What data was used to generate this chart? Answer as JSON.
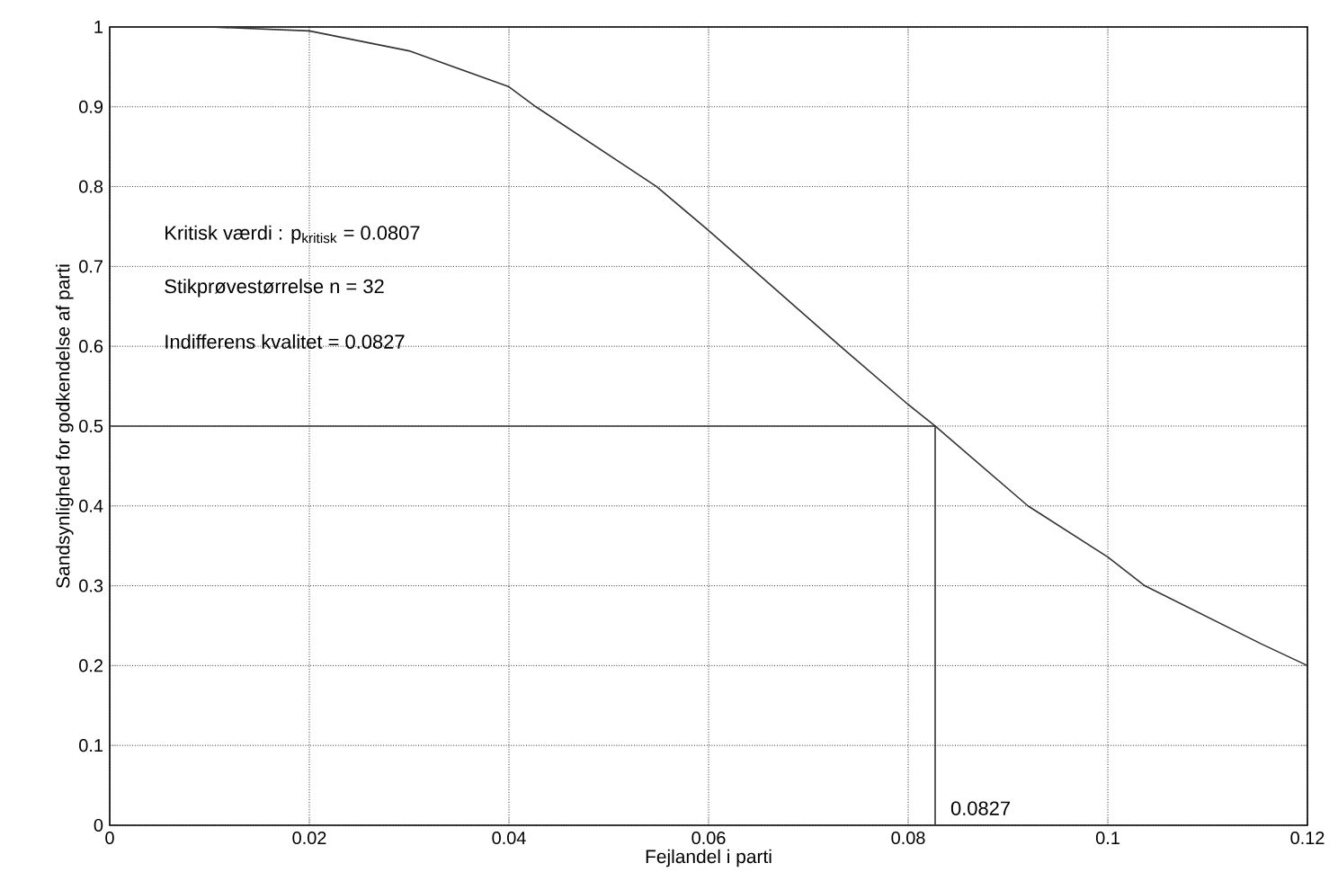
{
  "chart_data": {
    "type": "line",
    "xlabel": "Fejlandel i parti",
    "ylabel": "Sandsynlighed for godkendelse af parti",
    "xlim": [
      0,
      0.12
    ],
    "ylim": [
      0,
      1
    ],
    "xticks": [
      0,
      0.02,
      0.04,
      0.06,
      0.08,
      0.1,
      0.12
    ],
    "yticks": [
      0,
      0.1,
      0.2,
      0.3,
      0.4,
      0.5,
      0.6,
      0.7,
      0.8,
      0.9,
      1
    ],
    "grid": true,
    "series": [
      {
        "color": "#333333",
        "x": [
          0,
          0.01,
          0.02,
          0.03,
          0.04,
          0.0427,
          0.0548,
          0.06,
          0.0641,
          0.0732,
          0.08,
          0.0827,
          0.092,
          0.1,
          0.1037,
          0.1154,
          0.12
        ],
        "values": [
          1,
          1,
          0.995,
          0.97,
          0.925,
          0.9,
          0.8,
          0.745,
          0.7,
          0.6,
          0.527,
          0.5,
          0.4,
          0.336,
          0.3,
          0.227,
          0.2
        ]
      },
      {
        "color": "#333333",
        "x": [
          0,
          0.0827,
          0.0827
        ],
        "values": [
          0.5,
          0.5,
          0
        ]
      }
    ],
    "annotations": [
      "Kritisk værdi : p$_{kritisk}$ = 0.0807",
      "Stikprøvestørrelse n = 32",
      "Indifferens kvalitet = 0.0827",
      {
        "text": "0.0827",
        "x": 0.0827,
        "y": 0
      }
    ]
  }
}
